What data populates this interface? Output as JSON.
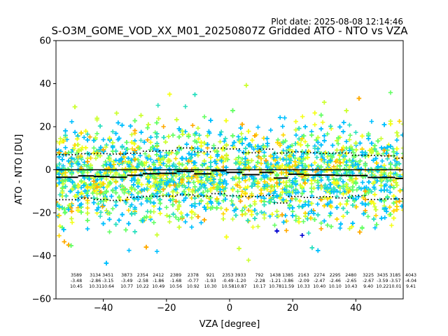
{
  "header": {
    "plot_date": "Plot date: 2025-08-08 12:14:46",
    "title": "S-O3M_GOME_VOD_XX_M01_20250807Z Gridded ATO - NTO vs VZA"
  },
  "chart_data": {
    "type": "scatter",
    "title": "S-O3M_GOME_VOD_XX_M01_20250807Z Gridded ATO - NTO vs VZA",
    "xlabel": "VZA [degree]",
    "ylabel": "ATO - NTO [DU]",
    "xlim": [
      -55,
      55
    ],
    "ylim": [
      -60,
      60
    ],
    "xticks": [
      -40,
      -20,
      0,
      20,
      40
    ],
    "yticks": [
      -60,
      -40,
      -20,
      0,
      20,
      40,
      60
    ],
    "grid": false,
    "marker": "+",
    "point_colors": [
      "#00c0ff",
      "#ffd700",
      "#66ff66",
      "#ccff33",
      "#2ee0c0",
      "#f5ff1a",
      "#ffaa00",
      "#0000d0"
    ],
    "zero_line": 0,
    "bins": [
      {
        "center": -51,
        "count": "3589",
        "mean": "-3.48",
        "std": "10.45"
      },
      {
        "center": -45,
        "count": "3134",
        "mean": "-2.86",
        "std": "10.31"
      },
      {
        "center": -41,
        "count": "3451",
        "mean": "-3.15",
        "std": "10.64"
      },
      {
        "center": -35,
        "count": "3873",
        "mean": "-3.49",
        "std": "10.77"
      },
      {
        "center": -30,
        "count": "2354",
        "mean": "-2.58",
        "std": "10.22"
      },
      {
        "center": -25,
        "count": "2412",
        "mean": "-1.86",
        "std": "10.49"
      },
      {
        "center": -19.5,
        "count": "2389",
        "mean": "-1.68",
        "std": "10.56"
      },
      {
        "center": -14,
        "count": "2378",
        "mean": "-0.77",
        "std": "10.92"
      },
      {
        "center": -8.5,
        "count": "921",
        "mean": "-1.93",
        "std": "10.30"
      },
      {
        "center": -3,
        "count": "2353",
        "mean": "-0.49",
        "std": "10.58"
      },
      {
        "center": 1,
        "count": "3933",
        "mean": "-1.20",
        "std": "10.87"
      },
      {
        "center": 7,
        "count": "792",
        "mean": "-2.28",
        "std": "10.17"
      },
      {
        "center": 12,
        "count": "1438",
        "mean": "-1.21",
        "std": "10.78"
      },
      {
        "center": 16,
        "count": "1385",
        "mean": "-3.86",
        "std": "11.59"
      },
      {
        "center": 21,
        "count": "2163",
        "mean": "-2.09",
        "std": "10.33"
      },
      {
        "center": 26,
        "count": "2274",
        "mean": "-2.47",
        "std": "10.40"
      },
      {
        "center": 31,
        "count": "2295",
        "mean": "-2.46",
        "std": "10.10"
      },
      {
        "center": 36,
        "count": "2480",
        "mean": "-2.65",
        "std": "10.43"
      },
      {
        "center": 41.5,
        "count": "3225",
        "mean": "-2.67",
        "std": "9.40"
      },
      {
        "center": 46,
        "count": "3435",
        "mean": "-3.59",
        "std": "10.22"
      },
      {
        "center": 50,
        "count": "3185",
        "mean": "-3.57",
        "std": "10.01"
      },
      {
        "center": 55,
        "count": "4043",
        "mean": "-4.04",
        "std": "9.41"
      }
    ]
  }
}
